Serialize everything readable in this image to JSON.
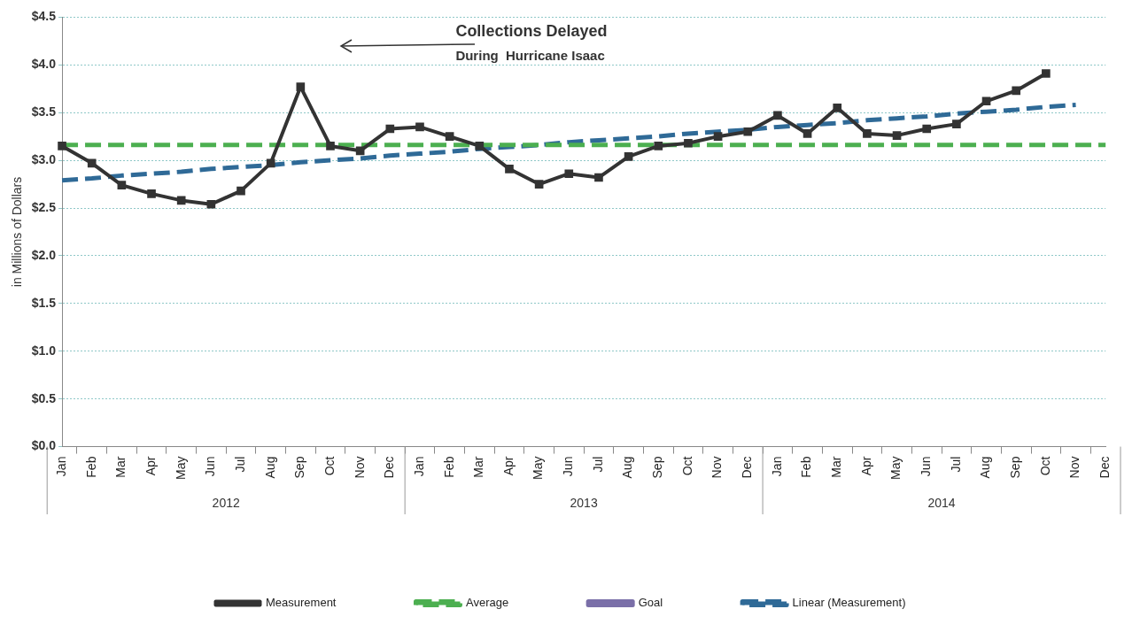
{
  "chart_data": {
    "type": "line",
    "ylabel": "in Millions of Dollars",
    "categories": [
      "Jan",
      "Feb",
      "Mar",
      "Apr",
      "May",
      "Jun",
      "Jul",
      "Aug",
      "Sep",
      "Oct",
      "Nov",
      "Dec",
      "Jan",
      "Feb",
      "Mar",
      "Apr",
      "May",
      "Jun",
      "Jul",
      "Aug",
      "Sep",
      "Oct",
      "Nov",
      "Dec",
      "Jan",
      "Feb",
      "Mar",
      "Apr",
      "May",
      "Jun",
      "Jul",
      "Aug",
      "Sep",
      "Oct",
      "Nov",
      "Dec"
    ],
    "series": [
      {
        "name": "Measurement",
        "color": "#333333",
        "marker": "square",
        "line_style": "solid",
        "values": [
          3.15,
          2.97,
          2.74,
          2.65,
          2.58,
          2.54,
          2.68,
          2.97,
          3.77,
          3.15,
          3.1,
          3.33,
          3.35,
          3.25,
          3.15,
          2.91,
          2.75,
          2.86,
          2.82,
          3.04,
          3.15,
          3.18,
          3.25,
          3.3,
          3.47,
          3.28,
          3.55,
          3.28,
          3.26,
          3.33,
          3.38,
          3.62,
          3.73,
          3.91,
          null,
          null
        ]
      },
      {
        "name": "Average",
        "color": "#4caf50",
        "marker": "none",
        "line_style": "dashed",
        "values": [
          3.16,
          3.16,
          3.16,
          3.16,
          3.16,
          3.16,
          3.16,
          3.16,
          3.16,
          3.16,
          3.16,
          3.16,
          3.16,
          3.16,
          3.16,
          3.16,
          3.16,
          3.16,
          3.16,
          3.16,
          3.16,
          3.16,
          3.16,
          3.16,
          3.16,
          3.16,
          3.16,
          3.16,
          3.16,
          3.16,
          3.16,
          3.16,
          3.16,
          3.16,
          3.16,
          3.16
        ]
      },
      {
        "name": "Goal",
        "color": "#7a6fa8",
        "marker": "none",
        "line_style": "solid",
        "values": [
          null,
          null,
          null,
          null,
          null,
          null,
          null,
          null,
          null,
          null,
          null,
          null,
          null,
          null,
          null,
          null,
          null,
          null,
          null,
          null,
          null,
          null,
          null,
          null,
          null,
          null,
          null,
          null,
          null,
          null,
          null,
          null,
          null,
          null,
          null,
          null
        ]
      },
      {
        "name": "Linear (Measurement)",
        "color": "#2f6a97",
        "marker": "none",
        "line_style": "dashed",
        "values": [
          2.79,
          2.81,
          2.84,
          2.86,
          2.88,
          2.91,
          2.93,
          2.95,
          2.98,
          3.0,
          3.02,
          3.05,
          3.07,
          3.09,
          3.12,
          3.14,
          3.16,
          3.19,
          3.21,
          3.23,
          3.25,
          3.28,
          3.3,
          3.32,
          3.35,
          3.37,
          3.39,
          3.42,
          3.44,
          3.46,
          3.49,
          3.51,
          3.53,
          3.56,
          3.58,
          null
        ]
      }
    ],
    "ylim": [
      0,
      4.5
    ],
    "yticks": [
      {
        "value": 0,
        "label": "$0.0"
      },
      {
        "value": 0.5,
        "label": "$0.5"
      },
      {
        "value": 1,
        "label": "$1.0"
      },
      {
        "value": 1.5,
        "label": "$1.5"
      },
      {
        "value": 2,
        "label": "$2.0"
      },
      {
        "value": 2.5,
        "label": "$2.5"
      },
      {
        "value": 3,
        "label": "$3.0"
      },
      {
        "value": 3.5,
        "label": "$3.5"
      },
      {
        "value": 4,
        "label": "$4.0"
      },
      {
        "value": 4.5,
        "label": "$4.5"
      }
    ],
    "grid": "y",
    "legend": "bottom",
    "annotations": [
      "Collections Delayed\nDuring  Hurricane Isaac",
      "2012",
      "2013",
      "2014"
    ]
  }
}
